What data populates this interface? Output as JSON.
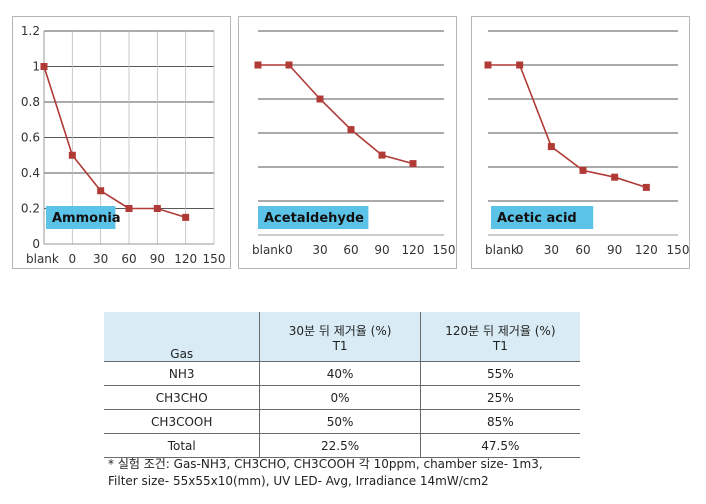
{
  "chart_data": [
    {
      "type": "line",
      "annotation": "Ammonia",
      "x_tick_labels": [
        "blank",
        "0",
        "30",
        "60",
        "90",
        "120",
        "150"
      ],
      "y_tick_labels": [
        "0",
        "0.2",
        "0.4",
        "0.6",
        "0.8",
        "1",
        "1.2"
      ],
      "ylim": [
        0,
        1.2
      ],
      "grid": true,
      "series": [
        {
          "values": [
            1.0,
            0.5,
            0.3,
            0.2,
            0.2,
            0.15
          ],
          "color": "#b03a36"
        }
      ]
    },
    {
      "type": "line",
      "annotation": "Acetaldehyde",
      "x_tick_labels": [
        "blank",
        "0",
        "30",
        "60",
        "90",
        "120",
        "150"
      ],
      "ylim": [
        0,
        1.2
      ],
      "grid": true,
      "series": [
        {
          "values": [
            1.0,
            1.0,
            0.8,
            0.62,
            0.47,
            0.42
          ],
          "color": "#b03a36"
        }
      ]
    },
    {
      "type": "line",
      "annotation": "Acetic acid",
      "x_tick_labels": [
        "blank",
        "0",
        "30",
        "60",
        "90",
        "120",
        "150"
      ],
      "ylim": [
        0,
        1.2
      ],
      "grid": true,
      "series": [
        {
          "values": [
            1.0,
            1.0,
            0.52,
            0.38,
            0.34,
            0.28
          ],
          "color": "#b03a36"
        }
      ]
    }
  ],
  "table": {
    "header_gas": "Gas",
    "header_30": "30분 뒤 제거율 (%)",
    "header_120": "120분 뒤 제거율 (%)",
    "sub_30": "T1",
    "sub_120": "T1",
    "rows": [
      {
        "gas": "NH3",
        "v30": "40%",
        "v120": "55%"
      },
      {
        "gas": "CH3CHO",
        "v30": "0%",
        "v120": "25%"
      },
      {
        "gas": "CH3COOH",
        "v30": "50%",
        "v120": "85%"
      },
      {
        "gas": "Total",
        "v30": "22.5%",
        "v120": "47.5%"
      }
    ]
  },
  "note": {
    "line1": "* 실험 조건: Gas-NH3, CH3CHO, CH3COOH 각 10ppm, chamber size- 1m3,",
    "line2": "Filter size- 55x55x10(mm), UV LED- Avg, Irradiance 14mW/cm2"
  },
  "colors": {
    "series": "#b03a36",
    "label_box": "#5bc3e8",
    "grid": "#1f1f1f",
    "axis": "#9a9a9a",
    "table_header": "#d9ecf6"
  }
}
